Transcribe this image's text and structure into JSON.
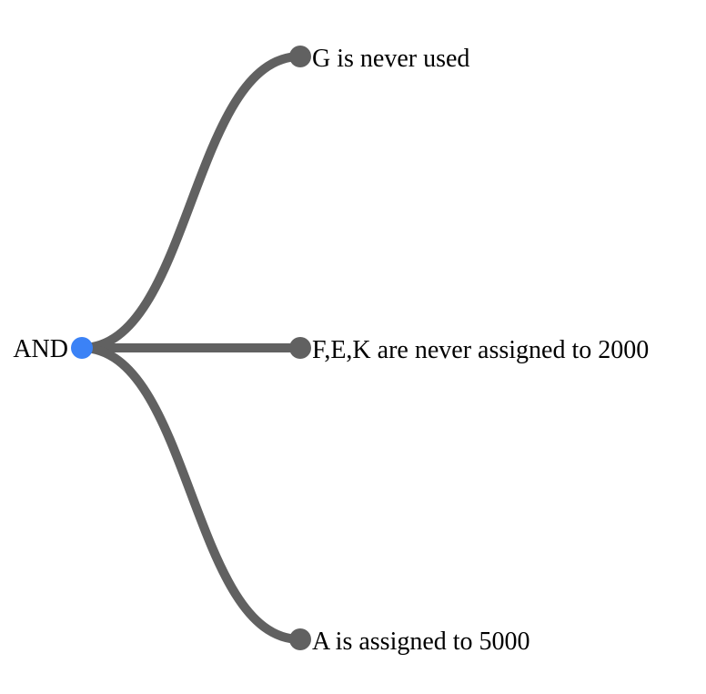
{
  "diagram": {
    "root": {
      "label": "AND",
      "color": "#3B82F6"
    },
    "children": [
      {
        "label": "G is never used",
        "color": "#616161"
      },
      {
        "label": "F,E,K are never assigned to 2000",
        "color": "#616161"
      },
      {
        "label": "A is assigned to 5000",
        "color": "#616161"
      }
    ],
    "edge_color": "#616161"
  }
}
